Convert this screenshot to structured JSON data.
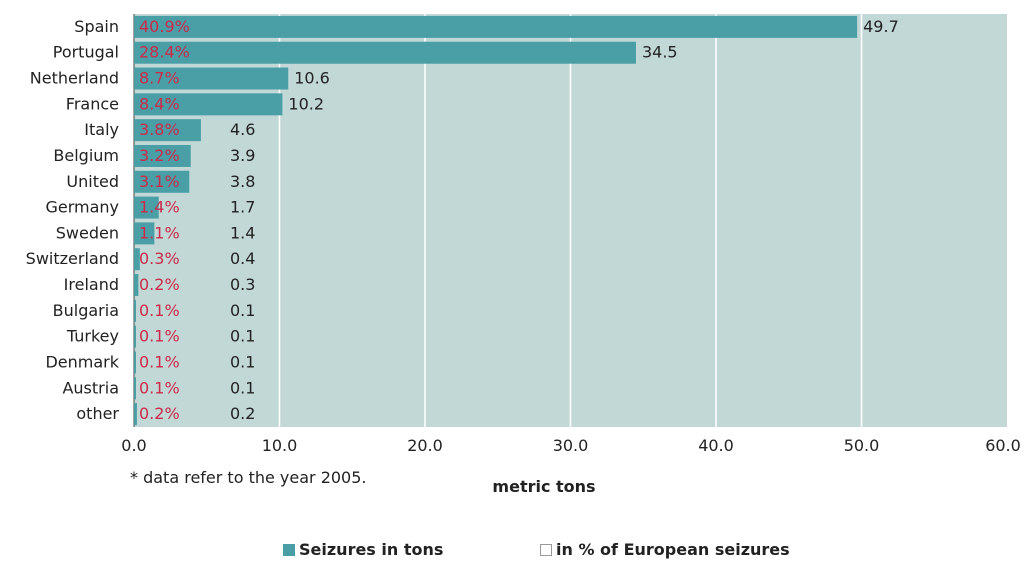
{
  "chart_data": {
    "type": "bar",
    "orientation": "horizontal",
    "categories": [
      "Spain",
      "Portugal",
      "Netherland",
      "France",
      "Italy",
      "Belgium",
      "United",
      "Germany",
      "Sweden",
      "Switzerland",
      "Ireland",
      "Bulgaria",
      "Turkey",
      "Denmark",
      "Austria",
      "other"
    ],
    "series": [
      {
        "name": "Seizures in tons",
        "values": [
          49.7,
          34.5,
          10.6,
          10.2,
          4.6,
          3.9,
          3.8,
          1.7,
          1.4,
          0.4,
          0.3,
          0.1,
          0.1,
          0.1,
          0.1,
          0.2
        ],
        "labels": [
          "49.7",
          "34.5",
          "10.6",
          "10.2",
          "4.6",
          "3.9",
          "3.8",
          "1.7",
          "1.4",
          "0.4",
          "0.3",
          "0.1",
          "0.1",
          "0.1",
          "0.1",
          "0.2"
        ],
        "color": "#4a9fa6"
      },
      {
        "name": "in % of European seizures",
        "labels": [
          "40.9%",
          "28.4%",
          "8.7%",
          "8.4%",
          "3.8%",
          "3.2%",
          "3.1%",
          "1.4%",
          "1.1%",
          "0.3%",
          "0.2%",
          "0.1%",
          "0.1%",
          "0.1%",
          "0.1%",
          "0.2%"
        ],
        "color": "#cc2a4a"
      }
    ],
    "xlabel": "metric tons",
    "xlim": [
      0,
      60
    ],
    "xticks": [
      "0.0",
      "10.0",
      "20.0",
      "30.0",
      "40.0",
      "50.0",
      "60.0"
    ],
    "grid": true,
    "plot_background": "#c2d8d7",
    "legend_position": "bottom",
    "note": "* data refer to the year 2005."
  }
}
